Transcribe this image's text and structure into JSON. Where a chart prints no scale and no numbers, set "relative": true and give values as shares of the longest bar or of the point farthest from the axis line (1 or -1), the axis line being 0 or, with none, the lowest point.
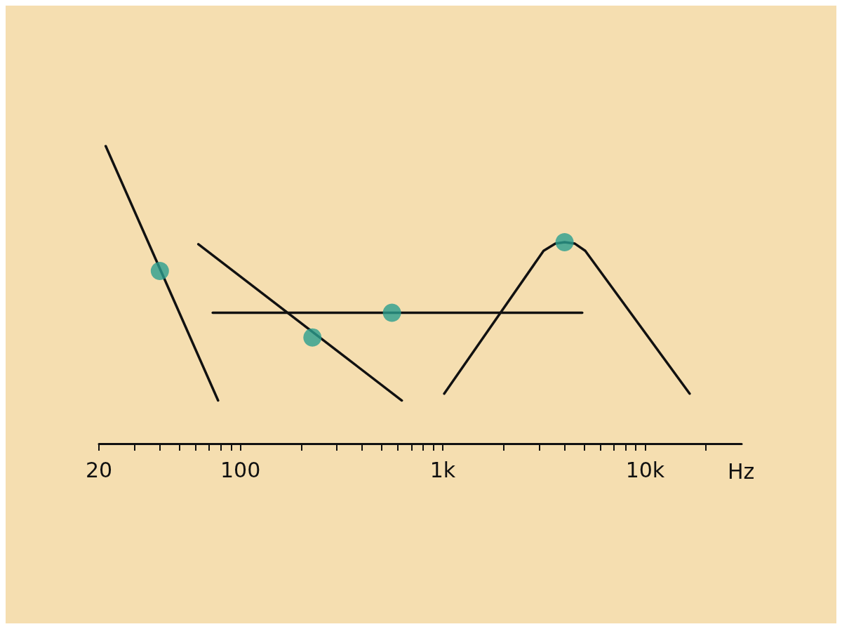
{
  "chart_data": {
    "type": "line",
    "xlabel": "Hz",
    "log": "x",
    "relative": true,
    "grid": false,
    "marker": "none",
    "line_style": "solid",
    "xlim": [
      20,
      30000
    ],
    "xticks": [
      20,
      {
        "value": 30,
        "label": null
      },
      {
        "value": 40,
        "label": null
      },
      {
        "value": 50,
        "label": null
      },
      {
        "value": 60,
        "label": null
      },
      {
        "value": 70,
        "label": null
      },
      {
        "value": 80,
        "label": null
      },
      {
        "value": 90,
        "label": null
      },
      100,
      {
        "value": 200,
        "label": null
      },
      {
        "value": 300,
        "label": null
      },
      {
        "value": 400,
        "label": null
      },
      {
        "value": 500,
        "label": null
      },
      {
        "value": 600,
        "label": null
      },
      {
        "value": 700,
        "label": null
      },
      {
        "value": 800,
        "label": null
      },
      {
        "value": 900,
        "label": null
      },
      {
        "value": 1000,
        "label": "1k"
      },
      {
        "value": 2000,
        "label": null
      },
      {
        "value": 3000,
        "label": null
      },
      {
        "value": 4000,
        "label": null
      },
      {
        "value": 5000,
        "label": null
      },
      {
        "value": 6000,
        "label": null
      },
      {
        "value": 7000,
        "label": null
      },
      {
        "value": 8000,
        "label": null
      },
      {
        "value": 9000,
        "label": null
      },
      {
        "value": 10000,
        "label": "10k"
      },
      {
        "value": 20000,
        "label": null
      }
    ],
    "series": [
      {
        "color": "#111111",
        "x": [
          21.6,
          77.6
        ],
        "values": [
          1.0,
          0.145
        ]
      },
      {
        "color": "#111111",
        "x": [
          62,
          628
        ],
        "values": [
          0.67,
          0.145
        ]
      },
      {
        "color": "#111111",
        "x": [
          73,
          4890
        ],
        "values": [
          0.44,
          0.44
        ]
      },
      {
        "color": "#111111",
        "x": [
          1017,
          3150,
          3600,
          4000,
          4500,
          5060,
          16600
        ],
        "values": [
          0.168,
          0.648,
          0.672,
          0.677,
          0.672,
          0.648,
          0.168
        ]
      },
      {
        "type": "scatter",
        "marker": "circle",
        "color": "#2a9d8f",
        "x": [
          40,
          227,
          561,
          4000
        ],
        "values": [
          0.58,
          0.357,
          0.44,
          0.677
        ]
      }
    ]
  }
}
